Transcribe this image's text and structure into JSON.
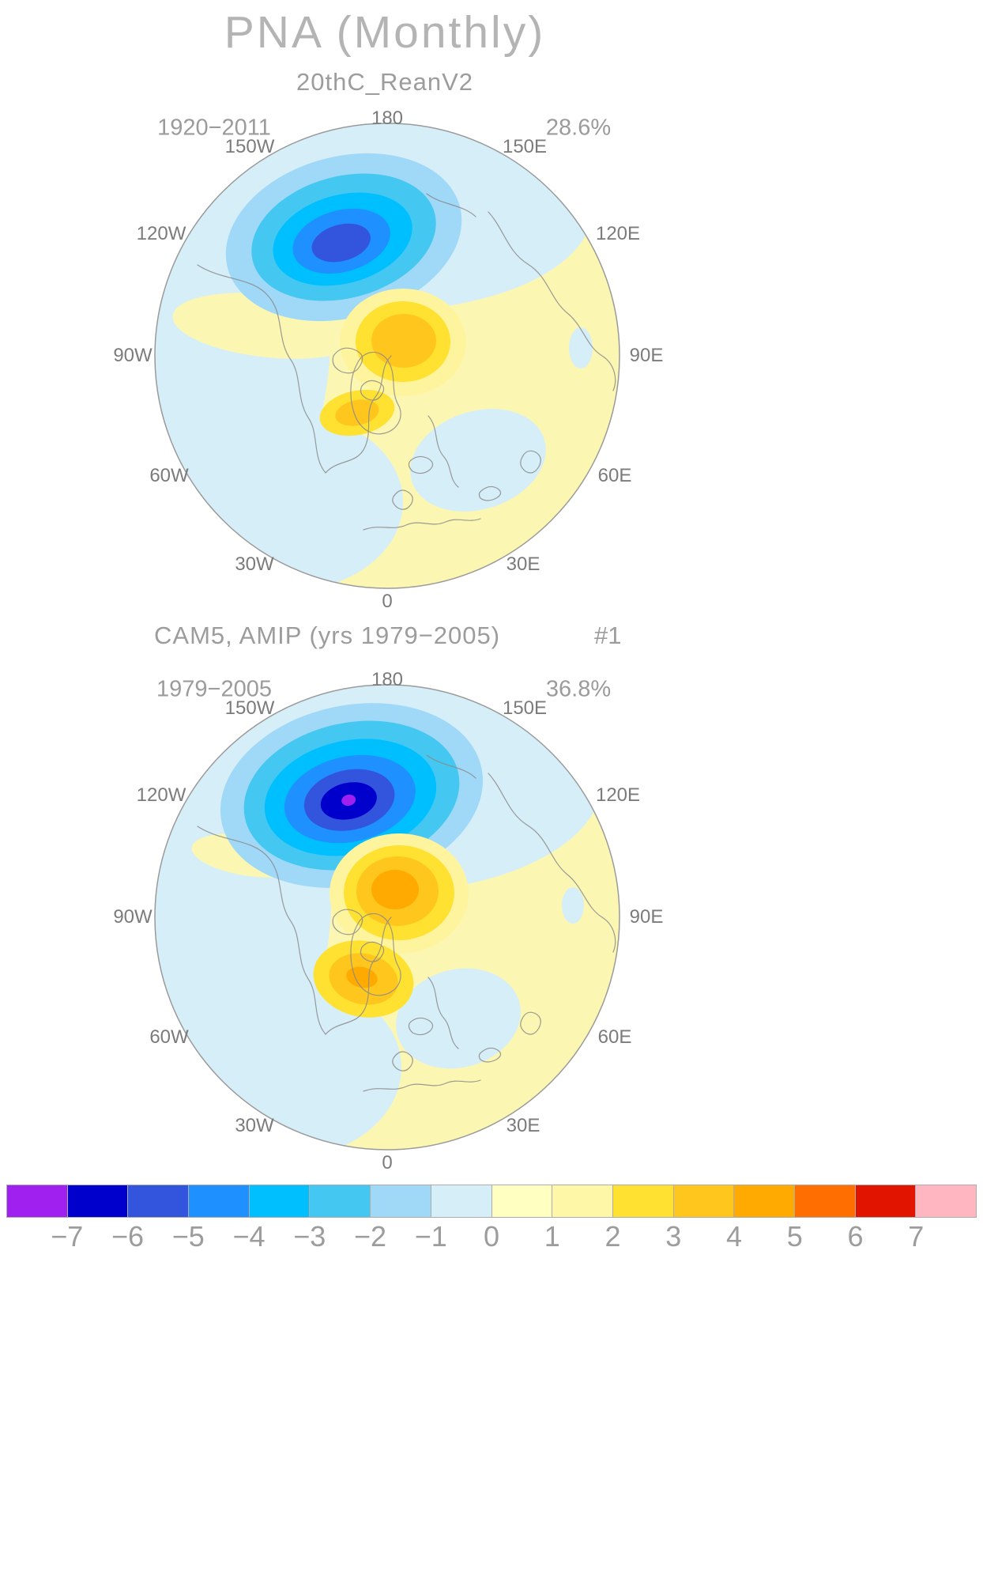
{
  "title": "PNA (Monthly)",
  "panels": [
    {
      "subtitle": "20thC_ReanV2",
      "period": "1920−2011",
      "variance": "28.6%",
      "lon_labels": [
        "180",
        "150W",
        "150E",
        "120W",
        "120E",
        "90W",
        "90E",
        "60W",
        "60E",
        "30W",
        "30E",
        "0"
      ]
    },
    {
      "subtitle": "CAM5, AMIP (yrs 1979−2005)",
      "member": "#1",
      "period": "1979−2005",
      "variance": "36.8%",
      "lon_labels": [
        "180",
        "150W",
        "150E",
        "120W",
        "120E",
        "90W",
        "90E",
        "60W",
        "60E",
        "30W",
        "30E",
        "0"
      ]
    }
  ],
  "colorbar": {
    "labels": [
      "−7",
      "−6",
      "−5",
      "−4",
      "−3",
      "−2",
      "−1",
      "0",
      "1",
      "2",
      "3",
      "4",
      "5",
      "6",
      "7"
    ],
    "colors": [
      "#a020f0",
      "#0000cd",
      "#3355dd",
      "#1e90ff",
      "#00bfff",
      "#44c8f1",
      "#a0d8f8",
      "#d6eef8",
      "#ffffc2",
      "#fff7a8",
      "#ffe132",
      "#ffc61e",
      "#ffaa00",
      "#ff6e00",
      "#e11400",
      "#ffb6c1"
    ]
  },
  "chart_data": {
    "type": "heatmap",
    "subtype": "polar-stereographic contour maps (Northern Hemisphere, pole-centered, 0° at bottom, 180° at top)",
    "title": "PNA (Monthly)",
    "contour_levels": [
      -7,
      -6,
      -5,
      -4,
      -3,
      -2,
      -1,
      0,
      1,
      2,
      3,
      4,
      5,
      6,
      7
    ],
    "colorbar_colors": [
      "#a020f0",
      "#0000cd",
      "#3355dd",
      "#1e90ff",
      "#00bfff",
      "#44c8f1",
      "#a0d8f8",
      "#d6eef8",
      "#ffffc2",
      "#fff7a8",
      "#ffe132",
      "#ffc61e",
      "#ffaa00",
      "#ff6e00",
      "#e11400",
      "#ffb6c1"
    ],
    "legend_position": "bottom",
    "panels": [
      {
        "name": "20thC_ReanV2",
        "years": "1920-2011",
        "variance_explained_pct": 28.6,
        "features": [
          {
            "region": "North Pacific near 180/150W",
            "sign": "negative",
            "approx_extreme": -6
          },
          {
            "region": "near-pole positive center toward 90E",
            "sign": "positive",
            "approx_extreme": 4
          },
          {
            "region": "secondary positive center equatorward of pole (Greenland side)",
            "sign": "positive",
            "approx_extreme": 3
          },
          {
            "region": "North America / west hemisphere background",
            "sign": "negative",
            "approx_extreme": -1
          },
          {
            "region": "Eurasia background",
            "sign": "positive",
            "approx_extreme": 1
          }
        ]
      },
      {
        "name": "CAM5, AMIP (yrs 1979-2005)",
        "member": "#1",
        "years": "1979-2005",
        "variance_explained_pct": 36.8,
        "features": [
          {
            "region": "North Pacific near 180/150W",
            "sign": "negative",
            "approx_extreme": -8
          },
          {
            "region": "near-pole positive center toward 90E",
            "sign": "positive",
            "approx_extreme": 5
          },
          {
            "region": "secondary positive center equatorward of pole",
            "sign": "positive",
            "approx_extreme": 5
          },
          {
            "region": "North America / west hemisphere background",
            "sign": "negative",
            "approx_extreme": -1
          },
          {
            "region": "Eurasia background",
            "sign": "positive",
            "approx_extreme": 1
          }
        ]
      }
    ]
  }
}
